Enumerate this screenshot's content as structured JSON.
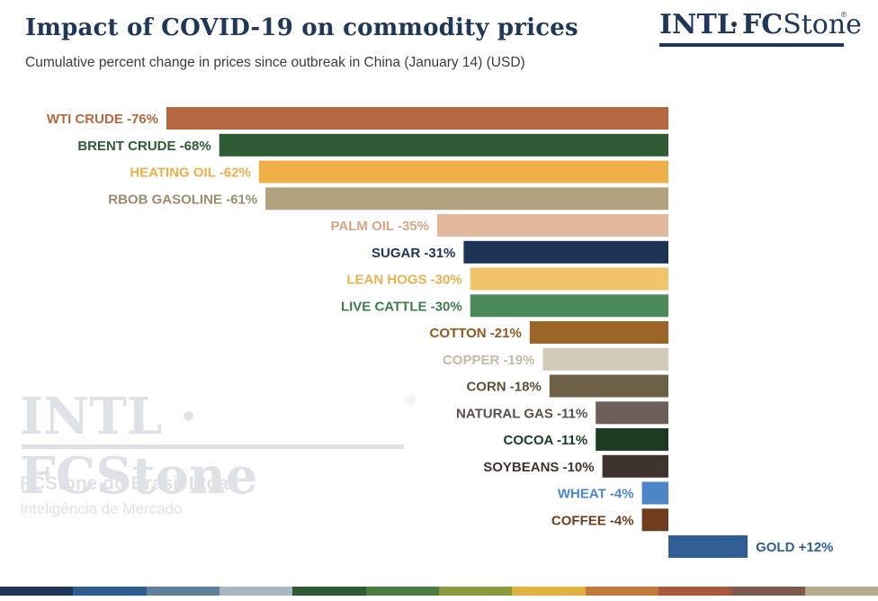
{
  "header": {
    "title": "Impact of COVID-19 on commodity prices",
    "subtitle": "Cumulative percent change in prices since outbreak in China (January 14) (USD)"
  },
  "logo": {
    "intl": "INTL",
    "fc": "FC",
    "stone": "Stone",
    "reg": "®"
  },
  "watermark": {
    "logo": "INTL · FCStone",
    "reg": "®",
    "company": "FCStone do Brasil Ltda.",
    "tagline": "Inteligência de Mercado"
  },
  "chart_data": {
    "type": "bar",
    "orientation": "horizontal",
    "title": "Impact of COVID-19 on commodity prices",
    "subtitle": "Cumulative percent change in prices since outbreak in China (January 14) (USD)",
    "unit": "%",
    "xlim": [
      -76,
      12
    ],
    "categories": [
      "WTI CRUDE",
      "BRENT CRUDE",
      "HEATING OIL",
      "RBOB GASOLINE",
      "PALM OIL",
      "SUGAR",
      "LEAN HOGS",
      "LIVE CATTLE",
      "COTTON",
      "COPPER",
      "CORN",
      "NATURAL GAS",
      "COCOA",
      "SOYBEANS",
      "WHEAT",
      "COFFEE",
      "GOLD"
    ],
    "values": [
      -76,
      -68,
      -62,
      -61,
      -35,
      -31,
      -30,
      -30,
      -21,
      -19,
      -18,
      -11,
      -11,
      -10,
      -4,
      -4,
      12
    ],
    "labels": [
      "WTI CRUDE -76%",
      "BRENT CRUDE -68%",
      "HEATING OIL -62%",
      "RBOB GASOLINE -61%",
      "PALM OIL -35%",
      "SUGAR -31%",
      "LEAN HOGS -30%",
      "LIVE CATTLE -30%",
      "COTTON -21%",
      "COPPER -19%",
      "CORN -18%",
      "NATURAL GAS -11%",
      "COCOA -11%",
      "SOYBEANS -10%",
      "WHEAT -4%",
      "COFFEE -4%",
      "GOLD +12%"
    ],
    "bar_colors": [
      "#b5683f",
      "#2f5b35",
      "#eeae48",
      "#b3a27f",
      "#e3b89c",
      "#1e3455",
      "#f2c46a",
      "#4b8b5a",
      "#9a6526",
      "#d2cbb7",
      "#6d6046",
      "#6f5f5a",
      "#1e3a22",
      "#3f332e",
      "#4c86c8",
      "#6d3d1e",
      "#2f5f95"
    ],
    "label_colors": [
      "#b5683f",
      "#2f5b35",
      "#eeae48",
      "#9a8c6e",
      "#d9a487",
      "#1e3455",
      "#eab24f",
      "#3d7a4c",
      "#8d5a20",
      "#c3bba5",
      "#5b4f3a",
      "#5c4f4a",
      "#1e3a22",
      "#3f332e",
      "#4c86c8",
      "#6d3d1e",
      "#2f5f95"
    ]
  },
  "decor": {
    "strip_colors": [
      "#1f3759",
      "#2e5d8f",
      "#5f7f9b",
      "#a9b7c0",
      "#2e5a34",
      "#4c7c3f",
      "#8a9a3e",
      "#e0b23f",
      "#c27a3b",
      "#a9593b",
      "#7d5a4a",
      "#b7a98c"
    ]
  }
}
